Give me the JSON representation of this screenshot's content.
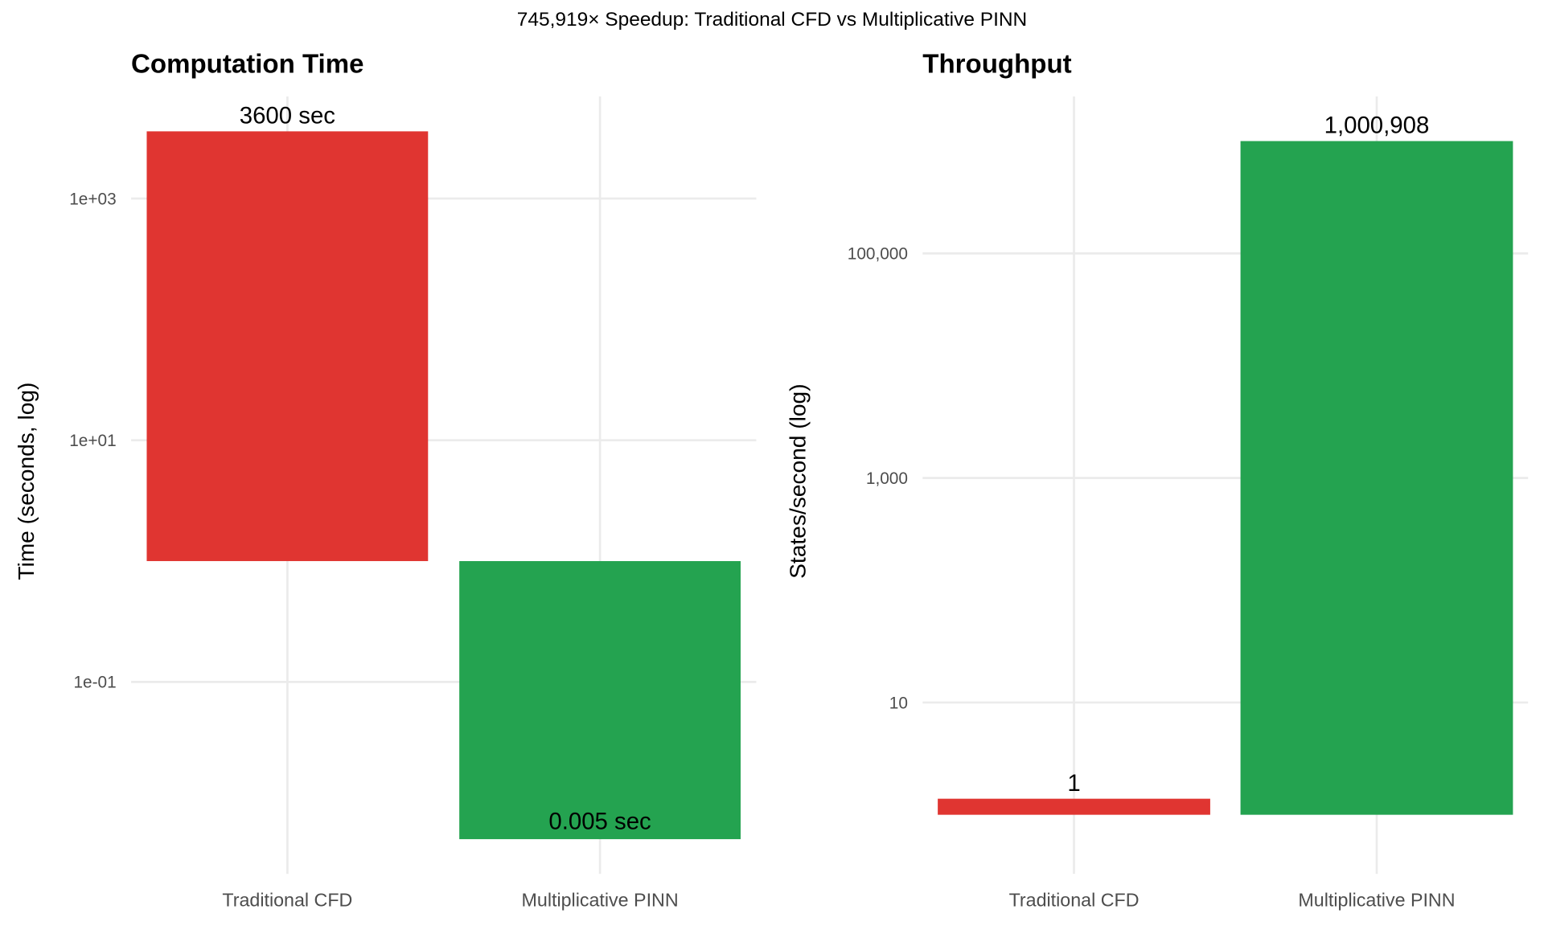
{
  "title": "745,919× Speedup: Traditional CFD vs Multiplicative PINN",
  "colors": {
    "traditional": "#E03531",
    "pinn": "#24A350",
    "grid": "#EBEBEB"
  },
  "chart_data": [
    {
      "type": "bar",
      "title": "Computation Time",
      "xlabel": "",
      "ylabel": "Time (seconds, log)",
      "yscale": "log10",
      "ylim": [
        0.003,
        7000
      ],
      "bar_base": 1,
      "grid": true,
      "categories": [
        "Traditional CFD",
        "Multiplicative PINN"
      ],
      "values": [
        3600,
        0.005
      ],
      "data_labels": [
        "3600 sec",
        "0.005 sec"
      ],
      "label_position": [
        "above",
        "inside-bottom"
      ],
      "yticks": [
        1000,
        10,
        0.1
      ],
      "ytick_labels": [
        "1e+03",
        "1e+01",
        "1e-01"
      ]
    },
    {
      "type": "bar",
      "title": "Throughput",
      "xlabel": "",
      "ylabel": "States/second (log)",
      "yscale": "log10",
      "ylim": [
        0.35,
        2500000
      ],
      "bar_base": 1,
      "grid": true,
      "categories": [
        "Traditional CFD",
        "Multiplicative PINN"
      ],
      "values": [
        1.39,
        1000908
      ],
      "data_labels": [
        "1",
        "1,000,908"
      ],
      "label_position": [
        "above",
        "above"
      ],
      "yticks": [
        100000,
        1000,
        10
      ],
      "ytick_labels": [
        "100,000",
        "1,000",
        "10"
      ]
    }
  ]
}
